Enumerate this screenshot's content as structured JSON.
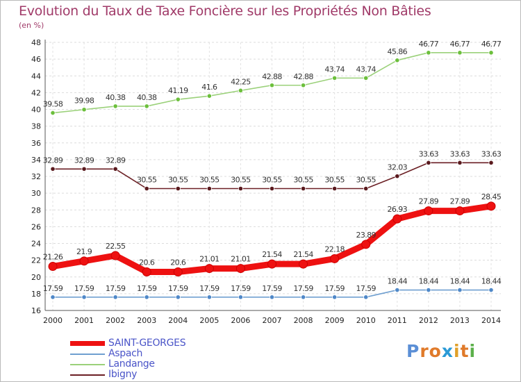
{
  "title": "Evolution du Taux de Taxe Foncière sur les Propriétés Non Bâties",
  "subtitle": "(en %)",
  "logo": {
    "letters": [
      "P",
      "r",
      "o",
      "x",
      "i",
      "t",
      "i"
    ],
    "colors": [
      "#5b8fd6",
      "#e07a2a",
      "#e07a2a",
      "#2a9ad6",
      "#e0a02a",
      "#e07a2a",
      "#5bb04a"
    ]
  },
  "chart_data": {
    "type": "line",
    "title": "Evolution du Taux de Taxe Foncière sur les Propriétés Non Bâties",
    "ylabel": "(en %)",
    "xlabel": "",
    "categories": [
      "2000",
      "2001",
      "2002",
      "2003",
      "2004",
      "2005",
      "2006",
      "2007",
      "2008",
      "2009",
      "2010",
      "2011",
      "2012",
      "2013",
      "2014"
    ],
    "ylim": [
      16,
      48
    ],
    "yticks": [
      "16",
      "18",
      "20",
      "22",
      "24",
      "26",
      "28",
      "30",
      "32",
      "34",
      "36",
      "38",
      "40",
      "42",
      "44",
      "46",
      "48"
    ],
    "grid": true,
    "series": [
      {
        "name": "Ibigny",
        "color": "#6b1f24",
        "point_color": "#5a1a1e",
        "values": [
          32.89,
          32.89,
          32.89,
          30.55,
          30.55,
          30.55,
          30.55,
          30.55,
          30.55,
          30.55,
          30.55,
          32.03,
          33.63,
          33.63,
          33.63
        ],
        "labels": [
          "32.89",
          "32.89",
          "32.89",
          "30.55",
          "30.55",
          "30.55",
          "30.55",
          "30.55",
          "30.55",
          "30.55",
          "30.55",
          "32.03",
          "33.63",
          "33.63",
          "33.63"
        ]
      },
      {
        "name": "Landange",
        "color": "#9bd17a",
        "point_color": "#6cbf3c",
        "values": [
          39.58,
          39.98,
          40.38,
          40.38,
          41.19,
          41.6,
          42.25,
          42.88,
          42.88,
          43.74,
          43.74,
          45.86,
          46.77,
          46.77,
          46.77
        ],
        "labels": [
          "39.58",
          "39.98",
          "40.38",
          "40.38",
          "41.19",
          "41.6",
          "42.25",
          "42.88",
          "42.88",
          "43.74",
          "43.74",
          "45.86",
          "46.77",
          "46.77",
          "46.77"
        ]
      },
      {
        "name": "Aspach",
        "color": "#6f9fd0",
        "point_color": "#4f88c8",
        "values": [
          17.59,
          17.59,
          17.59,
          17.59,
          17.59,
          17.59,
          17.59,
          17.59,
          17.59,
          17.59,
          17.59,
          18.44,
          18.44,
          18.44,
          18.44
        ],
        "labels": [
          "17.59",
          "17.59",
          "17.59",
          "17.59",
          "17.59",
          "17.59",
          "17.59",
          "17.59",
          "17.59",
          "17.59",
          "17.59",
          "18.44",
          "18.44",
          "18.44",
          "18.44"
        ]
      },
      {
        "name": "SAINT-GEORGES",
        "color": "#ee1111",
        "point_color": "#ee1111",
        "values": [
          21.26,
          21.9,
          22.55,
          20.6,
          20.6,
          21.01,
          21.01,
          21.54,
          21.54,
          22.18,
          23.89,
          26.93,
          27.89,
          27.89,
          28.45
        ],
        "labels": [
          "21.26",
          "21.9",
          "22.55",
          "20.6",
          "20.6",
          "21.01",
          "21.01",
          "21.54",
          "21.54",
          "22.18",
          "23.89",
          "26.93",
          "27.89",
          "27.89",
          "28.45"
        ]
      }
    ],
    "legend": {
      "position": "bottom-left",
      "entries": [
        "SAINT-GEORGES",
        "Aspach",
        "Landange",
        "Ibigny"
      ]
    }
  }
}
